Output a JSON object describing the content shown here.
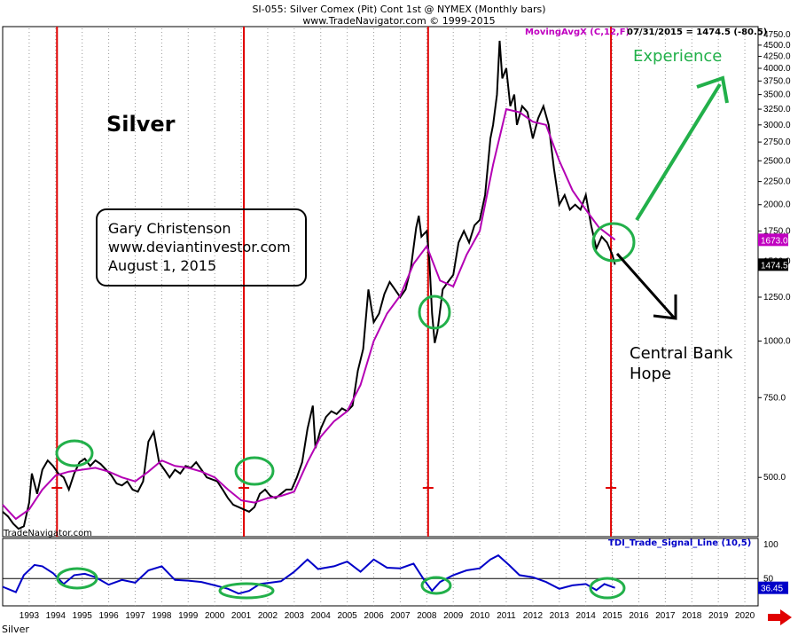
{
  "header": {
    "title": "SI-055:  Silver Comex (Pit) Cont 1st @ NYMEX  (Monthly bars)",
    "subtitle": "www.TradeNavigator.com © 1999-2015"
  },
  "annotations": {
    "big_title": "Silver",
    "credit": [
      "Gary Christenson",
      "www.deviantinvestor.com",
      "August 1, 2015"
    ],
    "experience": "Experience",
    "central_bank": [
      "Central Bank",
      "Hope"
    ],
    "watermark": "TradeNavigator.com",
    "symbol": "Silver"
  },
  "chart_data": [
    {
      "type": "line",
      "title": "",
      "ma_label": "MovingAvgX (C,12,F)",
      "last_label": "07/31/2015 = 1474.5 (-80.5)",
      "y_scale": "log",
      "ylim": [
        370,
        4900
      ],
      "y_ticks": [
        500,
        750,
        1000,
        1250,
        1500,
        1750,
        2000,
        2250,
        2500,
        2750,
        3000,
        3250,
        3500,
        3750,
        4000,
        4250,
        4500,
        4750
      ],
      "y_tick_labels": [
        "500.0",
        "750.0",
        "1000.0",
        "1250.0",
        "1500.0",
        "1750.0",
        "2000.0",
        "2250.0",
        "2500.0",
        "2750.0",
        "3000.0",
        "3250.0",
        "3500.0",
        "3750.0",
        "4000.0",
        "4250.0",
        "4500.0",
        "4750.0"
      ],
      "price_badges": [
        {
          "value": 1673.0,
          "label": "1673.0",
          "color": "#c000c0"
        },
        {
          "value": 1474.5,
          "label": "1474.5",
          "color": "#000000"
        }
      ],
      "x_years": [
        "1993",
        "1994",
        "1995",
        "1996",
        "1997",
        "1998",
        "1999",
        "2000",
        "2001",
        "2002",
        "2003",
        "2004",
        "2005",
        "2006",
        "2007",
        "2008",
        "2009",
        "2010",
        "2011",
        "2012",
        "2013",
        "2014",
        "2015",
        "2016",
        "2017",
        "2018",
        "2019",
        "2020"
      ],
      "xlim": [
        1992.5,
        2021.0
      ],
      "series": [
        {
          "color": "#000000",
          "points": [
            [
              1992.5,
              420
            ],
            [
              1992.7,
              410
            ],
            [
              1992.9,
              395
            ],
            [
              1993.1,
              385
            ],
            [
              1993.3,
              390
            ],
            [
              1993.5,
              440
            ],
            [
              1993.6,
              510
            ],
            [
              1993.8,
              460
            ],
            [
              1994.0,
              520
            ],
            [
              1994.2,
              545
            ],
            [
              1994.4,
              530
            ],
            [
              1994.6,
              510
            ],
            [
              1994.8,
              500
            ],
            [
              1995.0,
              470
            ],
            [
              1995.2,
              510
            ],
            [
              1995.4,
              540
            ],
            [
              1995.6,
              550
            ],
            [
              1995.8,
              530
            ],
            [
              1996.0,
              545
            ],
            [
              1996.2,
              535
            ],
            [
              1996.4,
              520
            ],
            [
              1996.6,
              505
            ],
            [
              1996.8,
              485
            ],
            [
              1997.0,
              480
            ],
            [
              1997.2,
              490
            ],
            [
              1997.4,
              470
            ],
            [
              1997.6,
              465
            ],
            [
              1997.8,
              490
            ],
            [
              1998.0,
              600
            ],
            [
              1998.2,
              630
            ],
            [
              1998.4,
              540
            ],
            [
              1998.6,
              520
            ],
            [
              1998.8,
              500
            ],
            [
              1999.0,
              520
            ],
            [
              1999.2,
              510
            ],
            [
              1999.4,
              530
            ],
            [
              1999.6,
              525
            ],
            [
              1999.8,
              540
            ],
            [
              2000.0,
              520
            ],
            [
              2000.2,
              500
            ],
            [
              2000.4,
              495
            ],
            [
              2000.6,
              490
            ],
            [
              2000.8,
              470
            ],
            [
              2001.0,
              450
            ],
            [
              2001.2,
              435
            ],
            [
              2001.4,
              430
            ],
            [
              2001.6,
              425
            ],
            [
              2001.8,
              420
            ],
            [
              2002.0,
              430
            ],
            [
              2002.2,
              460
            ],
            [
              2002.4,
              470
            ],
            [
              2002.6,
              455
            ],
            [
              2002.8,
              450
            ],
            [
              2003.0,
              460
            ],
            [
              2003.2,
              470
            ],
            [
              2003.4,
              470
            ],
            [
              2003.6,
              500
            ],
            [
              2003.8,
              540
            ],
            [
              2004.0,
              640
            ],
            [
              2004.2,
              720
            ],
            [
              2004.3,
              580
            ],
            [
              2004.5,
              640
            ],
            [
              2004.7,
              680
            ],
            [
              2004.9,
              700
            ],
            [
              2005.1,
              690
            ],
            [
              2005.3,
              710
            ],
            [
              2005.5,
              700
            ],
            [
              2005.7,
              720
            ],
            [
              2005.9,
              860
            ],
            [
              2006.1,
              960
            ],
            [
              2006.3,
              1300
            ],
            [
              2006.5,
              1100
            ],
            [
              2006.7,
              1150
            ],
            [
              2006.9,
              1270
            ],
            [
              2007.1,
              1350
            ],
            [
              2007.3,
              1300
            ],
            [
              2007.5,
              1250
            ],
            [
              2007.7,
              1300
            ],
            [
              2007.9,
              1450
            ],
            [
              2008.1,
              1780
            ],
            [
              2008.2,
              1890
            ],
            [
              2008.3,
              1700
            ],
            [
              2008.5,
              1750
            ],
            [
              2008.6,
              1500
            ],
            [
              2008.7,
              1150
            ],
            [
              2008.8,
              990
            ],
            [
              2008.9,
              1050
            ],
            [
              2009.1,
              1300
            ],
            [
              2009.3,
              1350
            ],
            [
              2009.5,
              1400
            ],
            [
              2009.7,
              1650
            ],
            [
              2009.9,
              1750
            ],
            [
              2010.1,
              1650
            ],
            [
              2010.3,
              1800
            ],
            [
              2010.5,
              1850
            ],
            [
              2010.7,
              2100
            ],
            [
              2010.9,
              2800
            ],
            [
              2011.0,
              3000
            ],
            [
              2011.15,
              3500
            ],
            [
              2011.25,
              4600
            ],
            [
              2011.35,
              3800
            ],
            [
              2011.5,
              4000
            ],
            [
              2011.65,
              3300
            ],
            [
              2011.8,
              3500
            ],
            [
              2011.9,
              3000
            ],
            [
              2012.1,
              3300
            ],
            [
              2012.3,
              3200
            ],
            [
              2012.5,
              2800
            ],
            [
              2012.7,
              3100
            ],
            [
              2012.9,
              3300
            ],
            [
              2013.1,
              3000
            ],
            [
              2013.3,
              2400
            ],
            [
              2013.5,
              2000
            ],
            [
              2013.7,
              2100
            ],
            [
              2013.9,
              1950
            ],
            [
              2014.1,
              2000
            ],
            [
              2014.3,
              1950
            ],
            [
              2014.5,
              2100
            ],
            [
              2014.7,
              1800
            ],
            [
              2014.9,
              1600
            ],
            [
              2015.1,
              1700
            ],
            [
              2015.3,
              1650
            ],
            [
              2015.5,
              1550
            ],
            [
              2015.6,
              1474.5
            ]
          ]
        },
        {
          "color": "#b400b4",
          "points": [
            [
              1992.5,
              435
            ],
            [
              1993.0,
              405
            ],
            [
              1993.5,
              425
            ],
            [
              1994.0,
              470
            ],
            [
              1994.5,
              505
            ],
            [
              1995.0,
              515
            ],
            [
              1995.5,
              520
            ],
            [
              1996.0,
              525
            ],
            [
              1996.5,
              515
            ],
            [
              1997.0,
              500
            ],
            [
              1997.5,
              490
            ],
            [
              1998.0,
              515
            ],
            [
              1998.5,
              545
            ],
            [
              1999.0,
              530
            ],
            [
              1999.5,
              525
            ],
            [
              2000.0,
              515
            ],
            [
              2000.5,
              500
            ],
            [
              2001.0,
              470
            ],
            [
              2001.5,
              445
            ],
            [
              2002.0,
              440
            ],
            [
              2002.5,
              450
            ],
            [
              2003.0,
              455
            ],
            [
              2003.5,
              465
            ],
            [
              2004.0,
              540
            ],
            [
              2004.5,
              615
            ],
            [
              2005.0,
              665
            ],
            [
              2005.5,
              700
            ],
            [
              2006.0,
              800
            ],
            [
              2006.5,
              1000
            ],
            [
              2007.0,
              1150
            ],
            [
              2007.5,
              1260
            ],
            [
              2008.0,
              1480
            ],
            [
              2008.5,
              1620
            ],
            [
              2009.0,
              1360
            ],
            [
              2009.5,
              1320
            ],
            [
              2010.0,
              1550
            ],
            [
              2010.5,
              1750
            ],
            [
              2011.0,
              2450
            ],
            [
              2011.5,
              3250
            ],
            [
              2012.0,
              3200
            ],
            [
              2012.5,
              3050
            ],
            [
              2013.0,
              3000
            ],
            [
              2013.5,
              2500
            ],
            [
              2014.0,
              2150
            ],
            [
              2014.5,
              1950
            ],
            [
              2015.0,
              1780
            ],
            [
              2015.6,
              1673
            ]
          ]
        }
      ]
    },
    {
      "type": "line",
      "title": "TDI_Trade_Signal_Line (10,5)",
      "ylim": [
        10,
        105
      ],
      "y_ticks": [
        50,
        100
      ],
      "y_tick_labels": [
        "50",
        "100"
      ],
      "reference_line": 50,
      "last_label": "36.45",
      "series": [
        {
          "color": "#0000c8",
          "points": [
            [
              1992.5,
              38
            ],
            [
              1993.0,
              30
            ],
            [
              1993.3,
              55
            ],
            [
              1993.7,
              70
            ],
            [
              1994.0,
              68
            ],
            [
              1994.4,
              58
            ],
            [
              1994.8,
              42
            ],
            [
              1995.2,
              55
            ],
            [
              1995.6,
              57
            ],
            [
              1996.0,
              52
            ],
            [
              1996.5,
              41
            ],
            [
              1997.0,
              48
            ],
            [
              1997.5,
              44
            ],
            [
              1998.0,
              62
            ],
            [
              1998.5,
              68
            ],
            [
              1999.0,
              48
            ],
            [
              1999.5,
              47
            ],
            [
              2000.0,
              45
            ],
            [
              2000.5,
              40
            ],
            [
              2001.0,
              35
            ],
            [
              2001.4,
              28
            ],
            [
              2001.8,
              32
            ],
            [
              2002.2,
              42
            ],
            [
              2002.6,
              44
            ],
            [
              2003.0,
              46
            ],
            [
              2003.5,
              60
            ],
            [
              2004.0,
              78
            ],
            [
              2004.4,
              64
            ],
            [
              2005.0,
              68
            ],
            [
              2005.5,
              75
            ],
            [
              2006.0,
              60
            ],
            [
              2006.5,
              78
            ],
            [
              2007.0,
              66
            ],
            [
              2007.5,
              65
            ],
            [
              2008.0,
              72
            ],
            [
              2008.4,
              48
            ],
            [
              2008.7,
              32
            ],
            [
              2009.0,
              45
            ],
            [
              2009.5,
              55
            ],
            [
              2010.0,
              62
            ],
            [
              2010.5,
              65
            ],
            [
              2010.9,
              78
            ],
            [
              2011.2,
              84
            ],
            [
              2011.6,
              70
            ],
            [
              2012.0,
              55
            ],
            [
              2012.5,
              52
            ],
            [
              2013.0,
              45
            ],
            [
              2013.5,
              35
            ],
            [
              2014.0,
              40
            ],
            [
              2014.5,
              42
            ],
            [
              2014.9,
              33
            ],
            [
              2015.2,
              42
            ],
            [
              2015.6,
              36.45
            ]
          ]
        }
      ]
    }
  ]
}
